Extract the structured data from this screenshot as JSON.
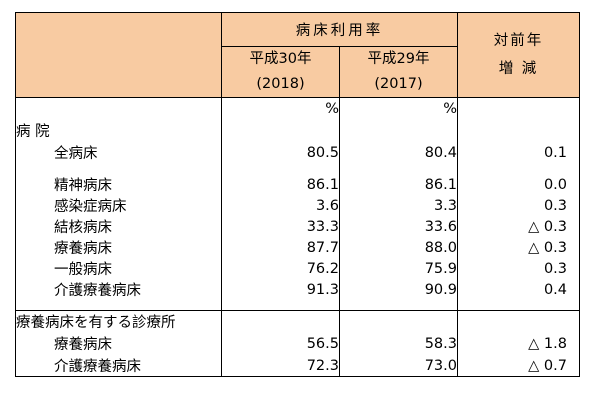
{
  "table": {
    "header": {
      "group_label": "病床利用率",
      "col_2018_line1": "平成30年",
      "col_2018_line2": "(2018)",
      "col_2017_line1": "平成29年",
      "col_2017_line2": "(2017)",
      "change_line1": "対前年",
      "change_line2": "増 減"
    },
    "unit_row": {
      "c1": "%",
      "c2": "%"
    },
    "sections": [
      {
        "title": "病 院",
        "rows": [
          {
            "label": "全病床",
            "v2018": "80.5",
            "v2017": "80.4",
            "change": "0.1"
          },
          {
            "label": "精神病床",
            "v2018": "86.1",
            "v2017": "86.1",
            "change": "0.0"
          },
          {
            "label": "感染症病床",
            "v2018": "3.6",
            "v2017": "3.3",
            "change": "0.3"
          },
          {
            "label": "結核病床",
            "v2018": "33.3",
            "v2017": "33.6",
            "change": "△ 0.3"
          },
          {
            "label": "療養病床",
            "v2018": "87.7",
            "v2017": "88.0",
            "change": "△ 0.3"
          },
          {
            "label": "一般病床",
            "v2018": "76.2",
            "v2017": "75.9",
            "change": "0.3"
          },
          {
            "label": "介護療養病床",
            "v2018": "91.3",
            "v2017": "90.9",
            "change": "0.4"
          }
        ]
      },
      {
        "title": "療養病床を有する診療所",
        "rows": [
          {
            "label": "療養病床",
            "v2018": "56.5",
            "v2017": "58.3",
            "change": "△ 1.8"
          },
          {
            "label": "介護療養病床",
            "v2018": "72.3",
            "v2017": "73.0",
            "change": "△ 0.7"
          }
        ]
      }
    ]
  }
}
